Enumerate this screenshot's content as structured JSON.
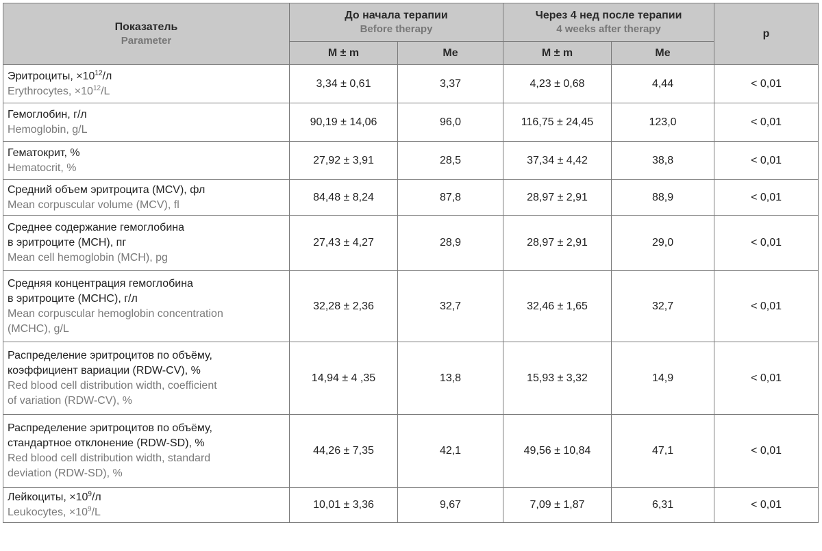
{
  "header": {
    "parameter_ru": "Показатель",
    "parameter_en": "Parameter",
    "before_ru": "До начала терапии",
    "before_en": "Before therapy",
    "after_ru": "Через 4 нед после терапии",
    "after_en": "4 weeks after therapy",
    "p": "p",
    "mean": "M ± m",
    "median": "Me"
  },
  "rows": [
    {
      "ru_parts": [
        "Эритроциты, ×10",
        "12",
        "/л"
      ],
      "en_parts": [
        "Erythrocytes, ×10",
        "12",
        "/L"
      ],
      "before_mean": "3,34 ± 0,61",
      "before_me": "3,37",
      "after_mean": "4,23 ± 0,68",
      "after_me": "4,44",
      "p": "< 0,01"
    },
    {
      "ru": "Гемоглобин, г/л",
      "en": "Hemoglobin, g/L",
      "before_mean": "90,19 ± 14,06",
      "before_me": "96,0",
      "after_mean": "116,75 ± 24,45",
      "after_me": "123,0",
      "p": "< 0,01"
    },
    {
      "ru": "Гематокрит, %",
      "en": "Hematocrit, %",
      "before_mean": "27,92 ± 3,91",
      "before_me": "28,5",
      "after_mean": "37,34 ± 4,42",
      "after_me": "38,8",
      "p": "< 0,01"
    },
    {
      "ru": "Средний объем эритроцита (MCV), фл",
      "en": "Mean corpuscular volume (MCV), fl",
      "before_mean": "84,48 ± 8,24",
      "before_me": "87,8",
      "after_mean": "28,97 ± 2,91",
      "after_me": "88,9",
      "p": "< 0,01"
    },
    {
      "ru_lines": [
        "Среднее содержание гемоглобина",
        "в эритроците (MCH), пг"
      ],
      "en_lines": [
        "Mean cell hemoglobin (MCH), pg"
      ],
      "before_mean": "27,43 ± 4,27",
      "before_me": "28,9",
      "after_mean": "28,97 ± 2,91",
      "after_me": "29,0",
      "p": "< 0,01"
    },
    {
      "ru_lines": [
        "Средняя концентрация гемоглобина",
        "в эритроците (MCHC), г/л"
      ],
      "en_lines": [
        "Mean corpuscular hemoglobin concentration",
        "(MCHC), g/L"
      ],
      "before_mean": "32,28 ± 2,36",
      "before_me": "32,7",
      "after_mean": "32,46 ± 1,65",
      "after_me": "32,7",
      "p": "< 0,01"
    },
    {
      "ru_lines": [
        "Распределение эритроцитов по объёму,",
        "коэффициент вариации (RDW-CV), %"
      ],
      "en_lines": [
        "Red blood cell distribution width, coefficient",
        "of variation (RDW-CV), %"
      ],
      "before_mean": "14,94 ± 4 ,35",
      "before_me": "13,8",
      "after_mean": "15,93 ± 3,32",
      "after_me": "14,9",
      "p": "< 0,01"
    },
    {
      "ru_lines": [
        "Распределение эритроцитов по объёму,",
        "стандартное отклонение (RDW-SD), %"
      ],
      "en_lines": [
        "Red blood cell distribution width, standard",
        "deviation (RDW-SD), %"
      ],
      "before_mean": "44,26 ± 7,35",
      "before_me": "42,1",
      "after_mean": "49,56 ± 10,84",
      "after_me": "47,1",
      "p": "< 0,01"
    },
    {
      "ru_parts": [
        "Лейкоциты, ×10",
        "9",
        "/л"
      ],
      "en_parts": [
        "Leukocytes, ×10",
        "9",
        "/L"
      ],
      "before_mean": "10,01 ± 3,36",
      "before_me": "9,67",
      "after_mean": "7,09 ± 1,87",
      "after_me": "6,31",
      "p": "< 0,01"
    }
  ]
}
